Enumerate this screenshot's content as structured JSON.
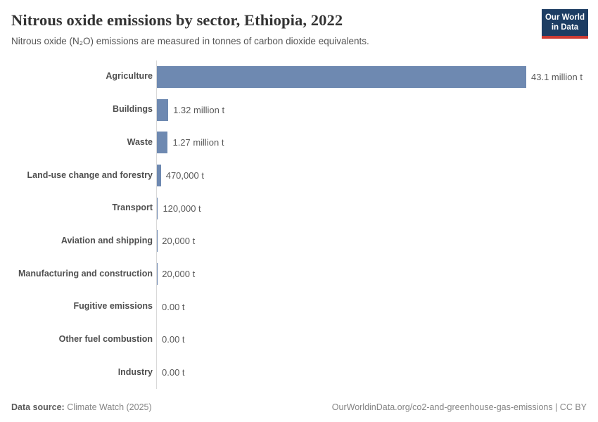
{
  "header": {
    "title": "Nitrous oxide emissions by sector, Ethiopia, 2022",
    "subtitle": "Nitrous oxide (N₂O) emissions are measured in tonnes of carbon dioxide equivalents.",
    "logo_line1": "Our World",
    "logo_line2": "in Data"
  },
  "chart_data": {
    "type": "bar",
    "orientation": "horizontal",
    "title": "Nitrous oxide emissions by sector, Ethiopia, 2022",
    "unit": "tonnes of carbon dioxide equivalents",
    "categories": [
      "Agriculture",
      "Buildings",
      "Waste",
      "Land-use change and forestry",
      "Transport",
      "Aviation and shipping",
      "Manufacturing and construction",
      "Fugitive emissions",
      "Other fuel combustion",
      "Industry"
    ],
    "values": [
      43100000,
      1320000,
      1270000,
      470000,
      120000,
      20000,
      20000,
      0,
      0,
      0
    ],
    "value_labels": [
      "43.1 million t",
      "1.32 million t",
      "1.27 million t",
      "470,000 t",
      "120,000 t",
      "20,000 t",
      "20,000 t",
      "0.00 t",
      "0.00 t",
      "0.00 t"
    ],
    "xlim": [
      0,
      43100000
    ],
    "grid": false,
    "legend": "none",
    "bar_color": "#6e89b1",
    "axis_line_color": "#d9d9d9"
  },
  "footer": {
    "source_label": "Data source:",
    "source_value": "Climate Watch (2025)",
    "right_text": "OurWorldinData.org/co2-and-greenhouse-gas-emissions | CC BY"
  }
}
